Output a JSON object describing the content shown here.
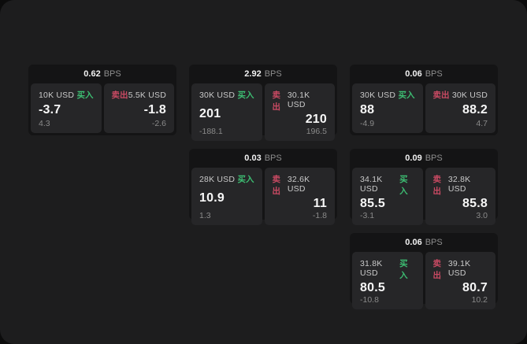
{
  "units": {
    "bps": "BPS"
  },
  "labels": {
    "buy": "买入",
    "sell": "卖出"
  },
  "colors": {
    "surface": "#1d1d1e",
    "card_background": "#141415",
    "panel_background": "#262628",
    "buy_green": "#3dbd72",
    "sell_red": "#c94a63",
    "value_white": "#f7f7f7",
    "muted_gray": "#8a8a8a"
  },
  "cards": [
    {
      "bps": "0.62",
      "buy": {
        "amount": "10K USD",
        "price": "-3.7",
        "delta": "4.3"
      },
      "sell": {
        "amount": "5.5K USD",
        "price": "-1.8",
        "delta": "-2.6"
      }
    },
    {
      "bps": "2.92",
      "buy": {
        "amount": "30K USD",
        "price": "201",
        "delta": "-188.1"
      },
      "sell": {
        "amount": "30.1K USD",
        "price": "210",
        "delta": "196.5"
      }
    },
    {
      "bps": "0.03",
      "buy": {
        "amount": "28K USD",
        "price": "10.9",
        "delta": "1.3"
      },
      "sell": {
        "amount": "32.6K USD",
        "price": "11",
        "delta": "-1.8"
      }
    },
    {
      "bps": "0.06",
      "buy": {
        "amount": "30K USD",
        "price": "88",
        "delta": "-4.9"
      },
      "sell": {
        "amount": "30K USD",
        "price": "88.2",
        "delta": "4.7"
      }
    },
    {
      "bps": "0.09",
      "buy": {
        "amount": "34.1K USD",
        "price": "85.5",
        "delta": "-3.1"
      },
      "sell": {
        "amount": "32.8K USD",
        "price": "85.8",
        "delta": "3.0"
      }
    },
    {
      "bps": "0.06",
      "buy": {
        "amount": "31.8K USD",
        "price": "80.5",
        "delta": "-10.8"
      },
      "sell": {
        "amount": "39.1K USD",
        "price": "80.7",
        "delta": "10.2"
      }
    }
  ]
}
